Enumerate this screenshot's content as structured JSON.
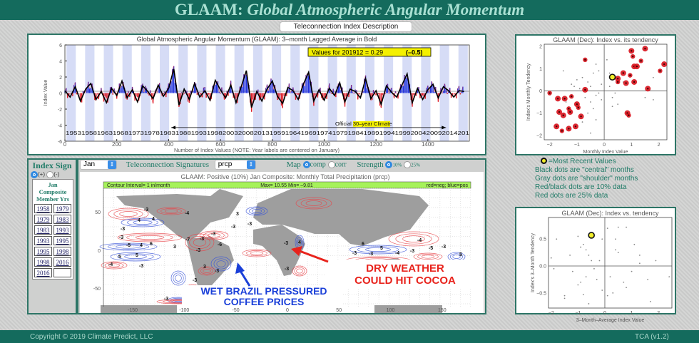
{
  "header": {
    "title_prefix": "GLAAM:",
    "title_italic": "Global Atmospheric Angular Momentum"
  },
  "desc_button": "Teleconnection Index Description",
  "timeseries": {
    "title": "Global Atmospheric Angular Momentum (GLAAM): 3–month Lagged Average in Bold",
    "value_box": "Values for 201912 = 0.29",
    "value_box_paren": "(–0.5)",
    "ylabel": "Index Value",
    "xlabel": "Number of Index Values (NOTE: Year labels are centered on January)",
    "year_labels": "1953195819631968197319781983198819931998200320082013195919641969197419791984198919941999200420092014201",
    "climate_label": "Official 30–year Climate",
    "colors": {
      "positive": "#2233dd",
      "negative": "#e0202a",
      "band": "#d6dcf6",
      "line": "#000000",
      "value_box": "#f4f000"
    }
  },
  "chart_data": [
    {
      "type": "line",
      "name_ref": "timeseries",
      "xlim": [
        0,
        1560
      ],
      "ylim": [
        -6,
        6
      ],
      "xticks": [
        0,
        200,
        400,
        600,
        800,
        1000,
        1200,
        1400
      ],
      "yticks": [
        -6,
        -4,
        -2,
        0,
        2,
        4,
        6
      ],
      "x_step": 20,
      "values": [
        0.3,
        -0.5,
        0.8,
        -1.0,
        0.5,
        1.2,
        -0.8,
        0.2,
        -1.2,
        0.6,
        -0.3,
        1.5,
        -0.6,
        0.4,
        -1.1,
        0.9,
        0.2,
        -0.7,
        1.0,
        -0.4,
        0.6,
        3.0,
        -1.5,
        0.5,
        -0.8,
        1.2,
        -0.5,
        0.3,
        -0.9,
        1.6,
        0.4,
        -0.6,
        1.0,
        -1.2,
        0.8,
        2.8,
        -1.8,
        0.2,
        -1.0,
        0.5,
        1.5,
        -0.4,
        -1.3,
        0.7,
        0.3,
        -0.8,
        1.1,
        2.6,
        -1.0,
        0.4,
        -0.9,
        0.6,
        -0.3,
        1.3,
        -1.1,
        0.5,
        0.2,
        -0.6,
        1.8,
        -0.7,
        0.3,
        -1.4,
        0.9,
        0.1,
        -0.5,
        1.0,
        2.4,
        -1.2,
        0.6,
        -0.8,
        0.4,
        1.1,
        -0.6,
        0.8,
        0.29,
        -0.5,
        0.3,
        0.2
      ],
      "climate_period_x": [
        410,
        1470
      ]
    },
    {
      "type": "scatter",
      "title": "GLAAM (Dec): Index vs. its tendency",
      "xlabel": "Monthly Index Value",
      "ylabel": "Index's Monthly Tendency",
      "xlim": [
        -2.2,
        2.3
      ],
      "ylim": [
        -2.2,
        2.1
      ],
      "xticks": [
        -2,
        -1,
        0,
        1,
        2
      ],
      "yticks": [
        -2,
        -1,
        0,
        1,
        2
      ],
      "most_recent": [
        0.3,
        0.62
      ],
      "red_points": [
        [
          -2,
          -0.1
        ],
        [
          -1.7,
          -0.35
        ],
        [
          -1.45,
          -0.35
        ],
        [
          -1.2,
          -0.25
        ],
        [
          -1.65,
          -0.95
        ],
        [
          -1.5,
          -1.1
        ],
        [
          -1.3,
          -0.8
        ],
        [
          -1.25,
          -0.95
        ],
        [
          -1.0,
          -0.6
        ],
        [
          -0.95,
          -0.75
        ],
        [
          -0.85,
          -1.15
        ],
        [
          -1.75,
          -1.6
        ],
        [
          -1.55,
          -1.8
        ],
        [
          -1.3,
          -1.7
        ],
        [
          -1.05,
          -1.6
        ],
        [
          -0.7,
          1.4
        ],
        [
          -0.7,
          0.05
        ],
        [
          0.5,
          0.55
        ],
        [
          0.5,
          0.4
        ],
        [
          0.7,
          0.8
        ],
        [
          0.8,
          0.35
        ],
        [
          0.95,
          0.7
        ],
        [
          1.1,
          0.4
        ],
        [
          1.0,
          1.8
        ],
        [
          1.05,
          1.55
        ],
        [
          1.1,
          1.1
        ],
        [
          1.2,
          1.1
        ],
        [
          1.35,
          1.35
        ],
        [
          1.5,
          1.9
        ],
        [
          1.6,
          0.1
        ],
        [
          2.05,
          0.9
        ],
        [
          2.2,
          1.2
        ],
        [
          0.85,
          -1.0
        ],
        [
          0.9,
          -1.1
        ]
      ],
      "gray_points": [
        [
          -1.5,
          0.9
        ],
        [
          -1.2,
          0.3
        ],
        [
          -1.0,
          0.5
        ],
        [
          -0.8,
          0.6
        ],
        [
          -0.6,
          0.4
        ],
        [
          -0.5,
          0.2
        ],
        [
          -0.4,
          0.8
        ],
        [
          -0.3,
          1.2
        ],
        [
          -0.2,
          0.9
        ],
        [
          -0.1,
          0.3
        ],
        [
          -0.3,
          -0.2
        ],
        [
          -0.5,
          -0.5
        ],
        [
          -0.4,
          -0.8
        ],
        [
          -0.6,
          -1.0
        ],
        [
          -0.3,
          -1.3
        ],
        [
          -0.5,
          -1.9
        ],
        [
          -0.2,
          -0.1
        ],
        [
          0.2,
          0.8
        ],
        [
          0.3,
          -0.3
        ],
        [
          0.4,
          -0.1
        ],
        [
          0.3,
          -0.7
        ],
        [
          0.5,
          -0.6
        ],
        [
          0.7,
          0.4
        ],
        [
          0.1,
          1.4
        ],
        [
          -0.9,
          0.1
        ],
        [
          -0.7,
          -0.3
        ],
        [
          -1.1,
          0.2
        ],
        [
          1.8,
          0.6
        ],
        [
          1.8,
          -0.4
        ],
        [
          1.5,
          -0.3
        ],
        [
          0.2,
          0.2
        ],
        [
          -0.1,
          -0.4
        ],
        [
          -0.8,
          -1.4
        ],
        [
          -1.4,
          -0.5
        ]
      ]
    },
    {
      "type": "scatter",
      "title": "GLAAM (Dec): Index vs. tendency",
      "xlabel": "3–Month–Average Index Value",
      "ylabel": "Index's 3–Month Tendency",
      "xlim": [
        -2.1,
        2.5
      ],
      "ylim": [
        -0.78,
        0.9
      ],
      "xticks": [
        -2,
        -1,
        0,
        1,
        2
      ],
      "yticks": [
        -0.5,
        0.0,
        0.5
      ],
      "most_recent": [
        -0.5,
        0.57
      ],
      "gray_points": [
        [
          -1.8,
          0.5
        ],
        [
          -1.5,
          -0.55
        ],
        [
          -1.5,
          -0.6
        ],
        [
          -1.3,
          0.2
        ],
        [
          -1.2,
          -0.1
        ],
        [
          -1.0,
          0.55
        ],
        [
          -0.9,
          0.35
        ],
        [
          -0.8,
          0.4
        ],
        [
          -0.7,
          0.3
        ],
        [
          -0.6,
          0.2
        ],
        [
          -0.5,
          0.1
        ],
        [
          -0.4,
          -0.05
        ],
        [
          -0.7,
          -0.2
        ],
        [
          -0.9,
          -0.3
        ],
        [
          -1.0,
          -0.35
        ],
        [
          -0.8,
          -0.53
        ],
        [
          -0.6,
          -0.7
        ],
        [
          -0.3,
          -0.25
        ],
        [
          -0.2,
          0.1
        ],
        [
          -0.1,
          0.5
        ],
        [
          0.1,
          0.7
        ],
        [
          0.2,
          -0.2
        ],
        [
          0.3,
          -0.5
        ],
        [
          0.4,
          0.3
        ],
        [
          0.4,
          0.5
        ],
        [
          0.5,
          0.25
        ],
        [
          0.5,
          0.72
        ],
        [
          0.7,
          -0.3
        ],
        [
          0.8,
          -0.4
        ],
        [
          0.8,
          0.72
        ],
        [
          1.0,
          -0.1
        ],
        [
          1.1,
          0.4
        ],
        [
          1.3,
          0.2
        ],
        [
          1.3,
          0.05
        ],
        [
          1.6,
          -0.25
        ],
        [
          1.9,
          0.1
        ],
        [
          1.7,
          -0.66
        ],
        [
          2.4,
          -0.2
        ],
        [
          -2.0,
          0.15
        ],
        [
          -1.9,
          -0.05
        ],
        [
          -0.1,
          -0.45
        ],
        [
          0.1,
          -0.55
        ]
      ]
    }
  ],
  "scatter_legend": {
    "most_recent": "=Most  Recent Values",
    "lines": [
      "Black dots are \"central\" months",
      "Gray dots are \"shoulder\" months",
      "Red/black dots are 10% data",
      "Red dots are 25% data"
    ]
  },
  "index_sign": {
    "title": "Index Sign",
    "plus": "(+)",
    "minus": "(-)",
    "selected": "+",
    "composite_title": "Jan Composite Member Yrs",
    "years": [
      [
        "1958",
        "1979"
      ],
      [
        "1979",
        "1983"
      ],
      [
        "1983",
        "1993"
      ],
      [
        "1993",
        "1995"
      ],
      [
        "1995",
        "1998"
      ],
      [
        "1998",
        "2016"
      ],
      [
        "2016",
        ""
      ]
    ]
  },
  "controls": {
    "month": "Jan",
    "signatures_label": "Teleconnection Signatures",
    "variable": "prcp",
    "map_label": "Map",
    "comp": "comp",
    "corr": "corr",
    "map_selected": "comp",
    "strength_label": "Strength",
    "s10": "10%",
    "s25": "25%",
    "strength_selected": "10%"
  },
  "map": {
    "title": "GLAAM: Positive (10%) Jan Composite: Monthly Total Precipitation (prcp)",
    "contour_interval": "Contour Interval= 1 in/month",
    "maxmin": "Max= 10.55  Min= –9.81",
    "color_key": "red=neg; blue=pos",
    "lat_ticks": [
      "50",
      "0",
      "-50"
    ],
    "lon_ticks": [
      "-150",
      "-100",
      "-50",
      "0",
      "50",
      "100",
      "150"
    ],
    "contour_labels": [
      "-3",
      "4",
      "4",
      "-3",
      "-3",
      "-5",
      "5",
      "4",
      "6",
      "3",
      "5",
      "-3",
      "-4",
      "-7",
      "-3",
      "-3",
      "-6",
      "-3",
      "3",
      "-3",
      "-3",
      "-3",
      "3",
      "-4",
      "4",
      "6",
      "5",
      "-4",
      "-5",
      "-3",
      "-3",
      "-3",
      "-4",
      "-3",
      "5",
      "-3",
      "-3",
      "-3",
      "-3"
    ],
    "annotation_dry": [
      "DRY WEATHER",
      "COULD HIT COCOA"
    ],
    "annotation_wet": [
      "WET BRAZIL PRESSURED",
      "COFFEE PRICES"
    ],
    "colors": {
      "dry": "#e8231c",
      "wet": "#1a3fd8",
      "land": "#9e9e9e",
      "key_bar": "#a6f25a"
    }
  },
  "footer": {
    "copyright": "Copyright © 2019 Climate Predict, LLC",
    "version": "TCA (v1.2)"
  }
}
